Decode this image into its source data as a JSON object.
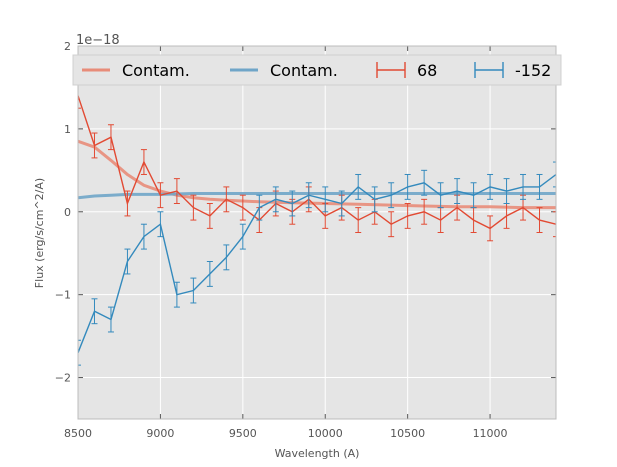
{
  "chart_data": {
    "type": "line",
    "title": "",
    "xlabel": "Wavelength (A)",
    "ylabel": "Flux (erg/s/cm^2/A)",
    "scale_label": "1e−18",
    "xlim": [
      8500,
      11400
    ],
    "ylim": [
      -2.5,
      2.0
    ],
    "xticks": [
      8500,
      9000,
      9500,
      10000,
      10500,
      11000
    ],
    "yticks": [
      -2,
      -1,
      0,
      1,
      2
    ],
    "ytick_labels": [
      "−2",
      "−1",
      "0",
      "1",
      "2"
    ],
    "grid": true,
    "legend_position": "top",
    "series": [
      {
        "name": "Contam.",
        "kind": "model",
        "color": "#e88c79",
        "x": [
          8500,
          8600,
          8700,
          8800,
          8900,
          9000,
          9100,
          9200,
          9300,
          9400,
          9500,
          9600,
          9800,
          10000,
          10200,
          10400,
          10600,
          10800,
          11000,
          11200,
          11400
        ],
        "y": [
          0.85,
          0.78,
          0.62,
          0.45,
          0.32,
          0.25,
          0.2,
          0.17,
          0.15,
          0.14,
          0.13,
          0.12,
          0.11,
          0.1,
          0.09,
          0.08,
          0.07,
          0.06,
          0.06,
          0.05,
          0.05
        ]
      },
      {
        "name": "Contam.",
        "kind": "model",
        "color": "#6fa5c8",
        "x": [
          8500,
          8600,
          8700,
          8800,
          9000,
          9200,
          9400,
          9600,
          9800,
          10000,
          10200,
          10400,
          10600,
          10800,
          11000,
          11200,
          11400
        ],
        "y": [
          0.17,
          0.19,
          0.2,
          0.21,
          0.21,
          0.22,
          0.22,
          0.22,
          0.22,
          0.22,
          0.22,
          0.22,
          0.22,
          0.22,
          0.22,
          0.22,
          0.22
        ]
      },
      {
        "name": "68",
        "kind": "data",
        "color": "#e24a33",
        "x": [
          8500,
          8600,
          8700,
          8800,
          8900,
          9000,
          9100,
          9200,
          9300,
          9400,
          9500,
          9600,
          9700,
          9800,
          9900,
          10000,
          10100,
          10200,
          10300,
          10400,
          10500,
          10600,
          10700,
          10800,
          10900,
          11000,
          11100,
          11200,
          11300,
          11400
        ],
        "y": [
          1.4,
          0.8,
          0.9,
          0.1,
          0.6,
          0.2,
          0.25,
          0.05,
          -0.05,
          0.15,
          0.05,
          -0.1,
          0.1,
          0.0,
          0.15,
          -0.05,
          0.05,
          -0.1,
          0.0,
          -0.15,
          -0.05,
          0.0,
          -0.1,
          0.05,
          -0.1,
          -0.2,
          -0.05,
          0.05,
          -0.1,
          -0.15
        ],
        "err": 0.15
      },
      {
        "name": "-152",
        "kind": "data",
        "color": "#348abd",
        "x": [
          8500,
          8600,
          8700,
          8800,
          8900,
          9000,
          9100,
          9200,
          9300,
          9400,
          9500,
          9600,
          9700,
          9800,
          9900,
          10000,
          10100,
          10200,
          10300,
          10400,
          10500,
          10600,
          10700,
          10800,
          10900,
          11000,
          11100,
          11200,
          11300,
          11400
        ],
        "y": [
          -1.7,
          -1.2,
          -1.3,
          -0.6,
          -0.3,
          -0.15,
          -1.0,
          -0.95,
          -0.75,
          -0.55,
          -0.3,
          0.05,
          0.15,
          0.1,
          0.2,
          0.15,
          0.1,
          0.3,
          0.15,
          0.2,
          0.3,
          0.35,
          0.2,
          0.25,
          0.2,
          0.3,
          0.25,
          0.3,
          0.3,
          0.45
        ],
        "err": 0.15
      }
    ]
  }
}
